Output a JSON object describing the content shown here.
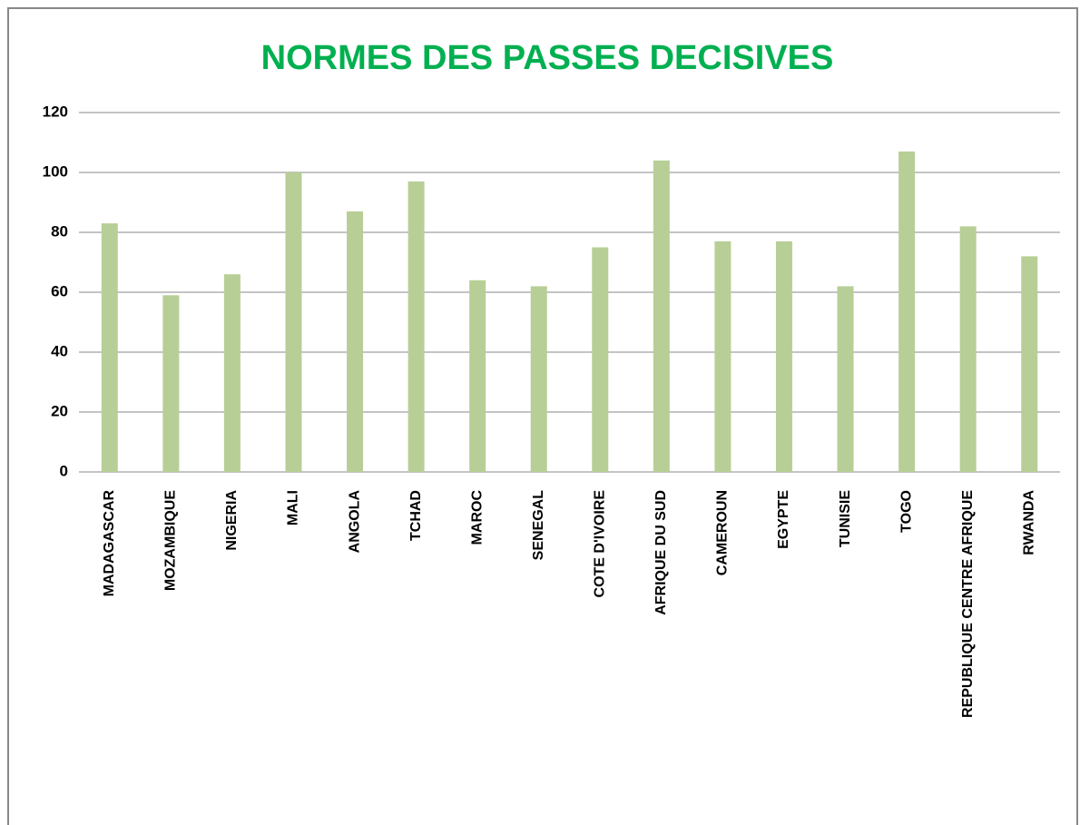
{
  "chart_data": {
    "type": "bar",
    "title": "NORMES DES PASSES DECISIVES",
    "categories": [
      "MADAGASCAR",
      "MOZAMBIQUE",
      "NIGERIA",
      "MALI",
      "ANGOLA",
      "TCHAD",
      "MAROC",
      "SENEGAL",
      "COTE D'IVOIRE",
      "AFRIQUE DU SUD",
      "CAMEROUN",
      "EGYPTE",
      "TUNISIE",
      "TOGO",
      "REPUBLIQUE CENTRE AFRIQUE",
      "RWANDA"
    ],
    "values": [
      83,
      59,
      66,
      100,
      87,
      97,
      64,
      62,
      75,
      104,
      77,
      77,
      62,
      107,
      82,
      72
    ],
    "color": "#b7cf96",
    "title_color": "#00b050",
    "ylim": [
      0,
      120
    ],
    "yticks": [
      0,
      20,
      40,
      60,
      80,
      100,
      120
    ],
    "grid": true
  }
}
